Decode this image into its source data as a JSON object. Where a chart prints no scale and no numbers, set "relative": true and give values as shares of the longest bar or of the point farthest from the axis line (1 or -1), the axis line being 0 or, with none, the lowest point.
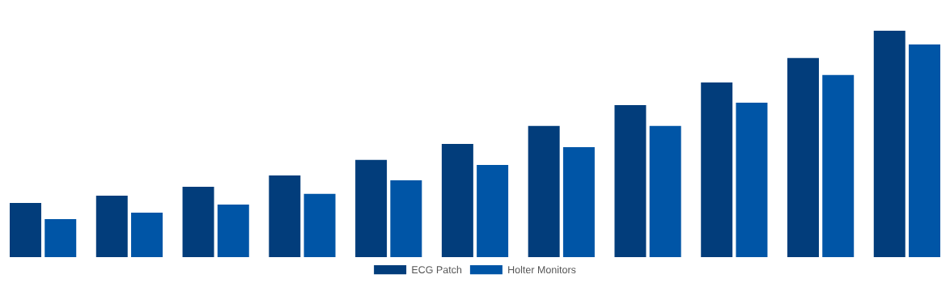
{
  "chart_data": {
    "type": "bar",
    "relative": true,
    "categories": [
      null,
      null,
      null,
      null,
      null,
      null,
      null,
      null,
      null,
      null,
      null
    ],
    "series": [
      {
        "name": "ECG Patch",
        "color": "#023d7b",
        "values": [
          0.239,
          0.271,
          0.311,
          0.361,
          0.429,
          0.5,
          0.579,
          0.671,
          0.771,
          0.879,
          1
        ]
      },
      {
        "name": "Holter Monitors",
        "color": "#0055a6",
        "values": [
          0.168,
          0.196,
          0.232,
          0.279,
          0.339,
          0.407,
          0.486,
          0.579,
          0.682,
          0.804,
          0.939
        ]
      }
    ],
    "legend": "bottom",
    "grid": false
  }
}
